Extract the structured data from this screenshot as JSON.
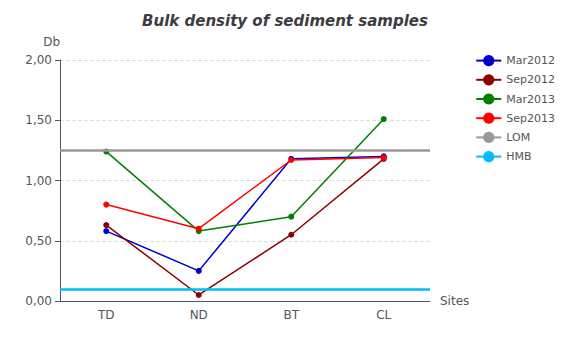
{
  "chart_data": {
    "type": "line",
    "title": "Bulk density of sediment samples",
    "ylabel": "Db",
    "xlabel": "Sites",
    "categories": [
      "TD",
      "ND",
      "BT",
      "CL"
    ],
    "series": [
      {
        "name": "Mar2012",
        "color": "#0000CC",
        "marker": "circle",
        "values": [
          0.58,
          0.25,
          1.18,
          1.2
        ]
      },
      {
        "name": "Sep2012",
        "color": "#8B0000",
        "marker": "circle",
        "values": [
          0.63,
          0.05,
          0.55,
          1.18
        ]
      },
      {
        "name": "Mar2013",
        "color": "#008000",
        "marker": "circle",
        "values": [
          1.24,
          0.58,
          0.7,
          1.51
        ]
      },
      {
        "name": "Sep2013",
        "color": "#FF0000",
        "marker": "circle",
        "values": [
          0.8,
          0.6,
          1.17,
          1.19
        ]
      },
      {
        "name": "LOM",
        "color": "#999999",
        "type": "hline",
        "value": 1.25
      },
      {
        "name": "HMB",
        "color": "#00BBFF",
        "type": "hline",
        "value": 0.1
      }
    ],
    "ylim": [
      0,
      2
    ],
    "yticks": [
      {
        "value": 0,
        "label": "0,00"
      },
      {
        "value": 0.5,
        "label": "0,50"
      },
      {
        "value": 1,
        "label": "1,00"
      },
      {
        "value": 1.5,
        "label": "1,50"
      },
      {
        "value": 2,
        "label": "2,00"
      }
    ],
    "grid": true,
    "legend": "right"
  }
}
